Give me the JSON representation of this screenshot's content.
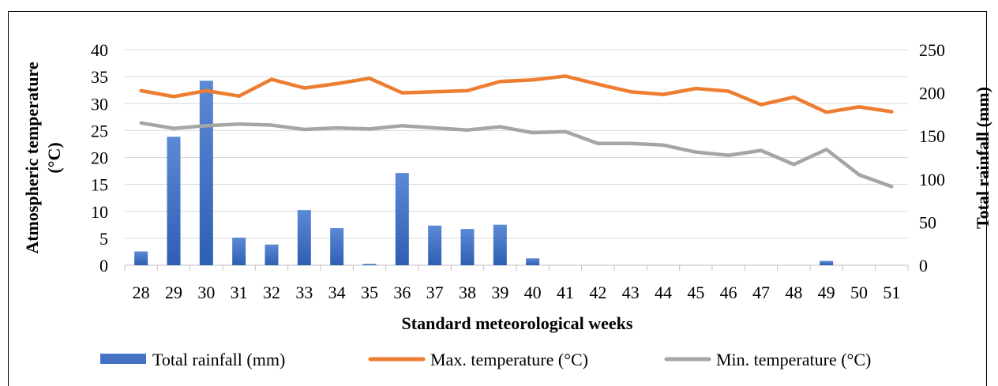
{
  "chart_data": {
    "type": "bar+line",
    "categories": [
      "28",
      "29",
      "30",
      "31",
      "32",
      "33",
      "34",
      "35",
      "36",
      "37",
      "38",
      "39",
      "40",
      "41",
      "42",
      "43",
      "44",
      "45",
      "46",
      "47",
      "48",
      "49",
      "50",
      "51"
    ],
    "xlabel": "Standard meteorological weeks",
    "ylabel_left_line1": "Atmospheric temperature",
    "ylabel_left_line2": "(°C)",
    "ylabel_right": "Total rainfall (mm)",
    "ylim_left": [
      0,
      40
    ],
    "yticks_left": [
      "0",
      "5",
      "10",
      "15",
      "20",
      "25",
      "30",
      "35",
      "40"
    ],
    "ylim_right": [
      0,
      250
    ],
    "yticks_right": [
      "0",
      "50",
      "100",
      "150",
      "200",
      "250"
    ],
    "grid": true,
    "legend_position": "bottom",
    "series": [
      {
        "name": "Total rainfall (mm)",
        "type": "bar",
        "axis": "right",
        "color": "#4472c4",
        "values": [
          16,
          149,
          214,
          32,
          24,
          64,
          43,
          1.5,
          107,
          46,
          42,
          47,
          8,
          0,
          0,
          0,
          0,
          0,
          0,
          0,
          0,
          5,
          0,
          0
        ]
      },
      {
        "name": "Max. temperature (°C)",
        "type": "line",
        "axis": "left",
        "color": "#ed7d31",
        "values": [
          32.4,
          31.3,
          32.4,
          31.4,
          34.5,
          32.9,
          33.7,
          34.7,
          32.0,
          32.2,
          32.4,
          34.1,
          34.4,
          35.1,
          33.6,
          32.2,
          31.7,
          32.8,
          32.3,
          29.8,
          31.2,
          28.4,
          29.4,
          28.5
        ]
      },
      {
        "name": "Min. temperature (°C)",
        "type": "line",
        "axis": "left",
        "color": "#a5a5a5",
        "values": [
          26.4,
          25.4,
          25.9,
          26.2,
          26.0,
          25.2,
          25.5,
          25.3,
          25.9,
          25.5,
          25.1,
          25.7,
          24.6,
          24.8,
          22.6,
          22.6,
          22.3,
          21.0,
          20.4,
          21.3,
          18.7,
          21.5,
          16.8,
          14.6
        ]
      }
    ]
  }
}
